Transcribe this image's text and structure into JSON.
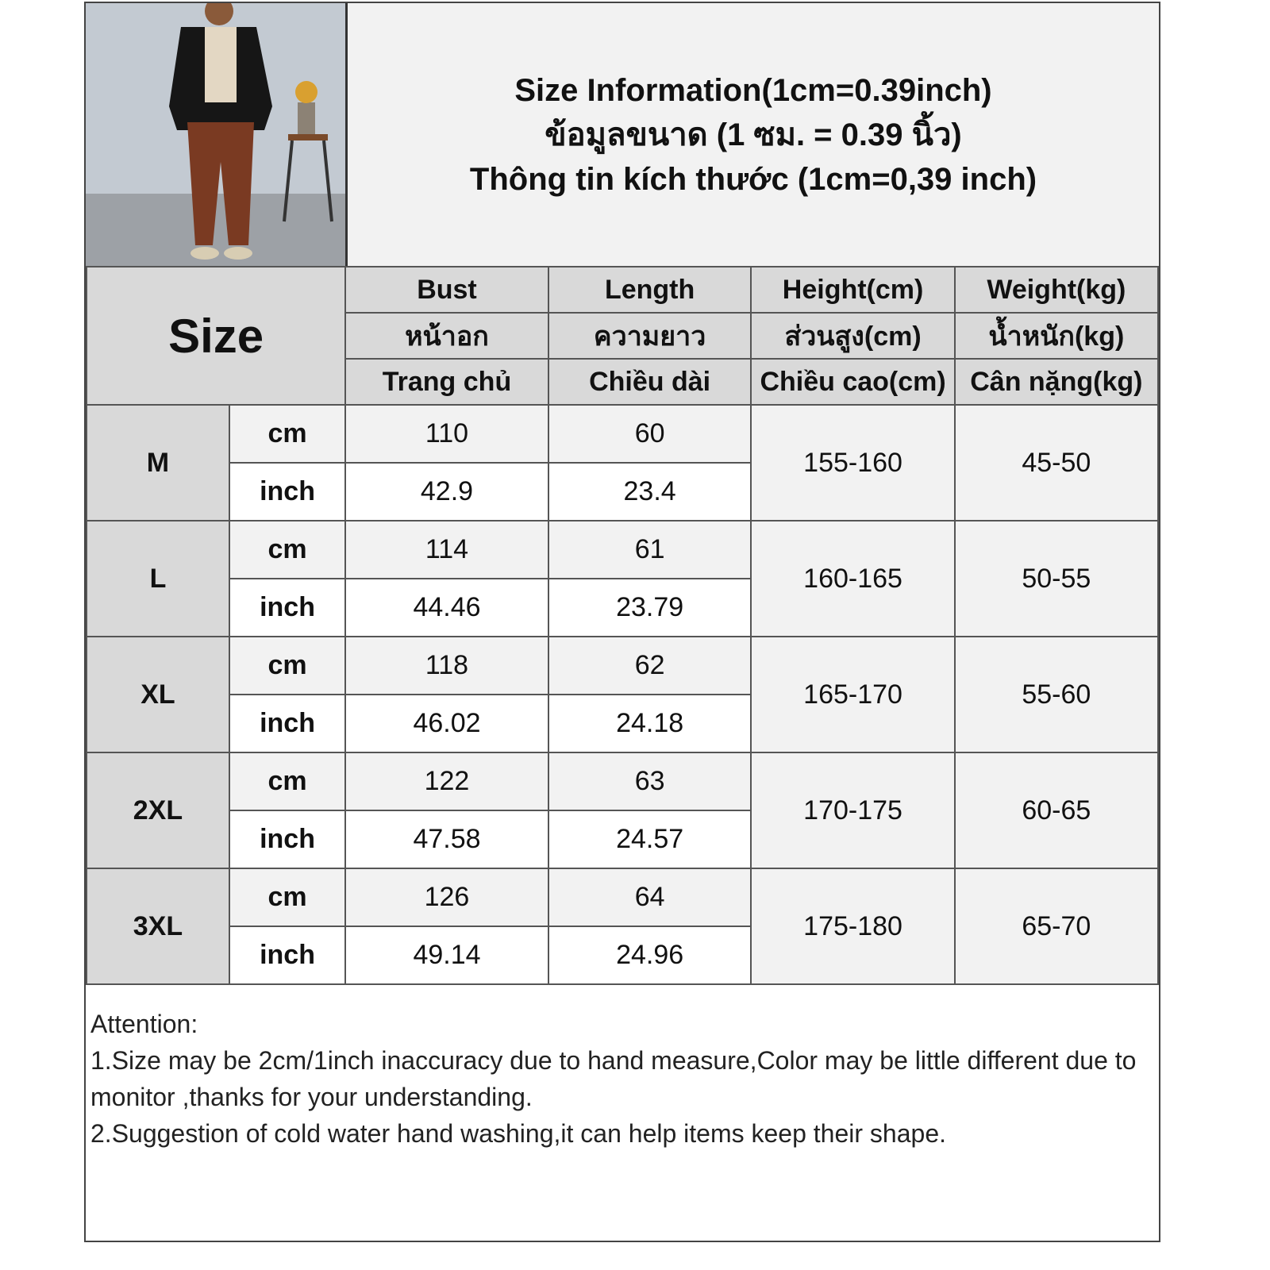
{
  "title_lines": [
    "Size Information(1cm=0.39inch)",
    "ข้อมูลขนาด (1 ซม. = 0.39 นิ้ว)",
    "Thông tin kích thước (1cm=0,39 inch)"
  ],
  "size_header": "Size",
  "columns": [
    {
      "en": "Bust",
      "th": "หน้าอก",
      "vi": "Trang chủ"
    },
    {
      "en": "Length",
      "th": "ความยาว",
      "vi": "Chiều dài"
    },
    {
      "en": "Height(cm)",
      "th": "ส่วนสูง(cm)",
      "vi": "Chiều cao(cm)"
    },
    {
      "en": "Weight(kg)",
      "th": "น้ำหนัก(kg)",
      "vi": "Cân nặng(kg)"
    }
  ],
  "units": {
    "cm": "cm",
    "inch": "inch"
  },
  "rows": [
    {
      "size": "M",
      "bust_cm": "110",
      "length_cm": "60",
      "bust_inch": "42.9",
      "length_inch": "23.4",
      "height": "155-160",
      "weight": "45-50"
    },
    {
      "size": "L",
      "bust_cm": "114",
      "length_cm": "61",
      "bust_inch": "44.46",
      "length_inch": "23.79",
      "height": "160-165",
      "weight": "50-55"
    },
    {
      "size": "XL",
      "bust_cm": "118",
      "length_cm": "62",
      "bust_inch": "46.02",
      "length_inch": "24.18",
      "height": "165-170",
      "weight": "55-60"
    },
    {
      "size": "2XL",
      "bust_cm": "122",
      "length_cm": "63",
      "bust_inch": "47.58",
      "length_inch": "24.57",
      "height": "170-175",
      "weight": "60-65"
    },
    {
      "size": "3XL",
      "bust_cm": "126",
      "length_cm": "64",
      "bust_inch": "49.14",
      "length_inch": "24.96",
      "height": "175-180",
      "weight": "65-70"
    }
  ],
  "attention": {
    "heading": "Attention:",
    "lines": [
      "1.Size may be 2cm/1inch inaccuracy due to hand measure,Color may be little different due to monitor ,thanks for your understanding.",
      "2.Suggestion of cold water hand washing,it can help items keep their shape."
    ]
  }
}
